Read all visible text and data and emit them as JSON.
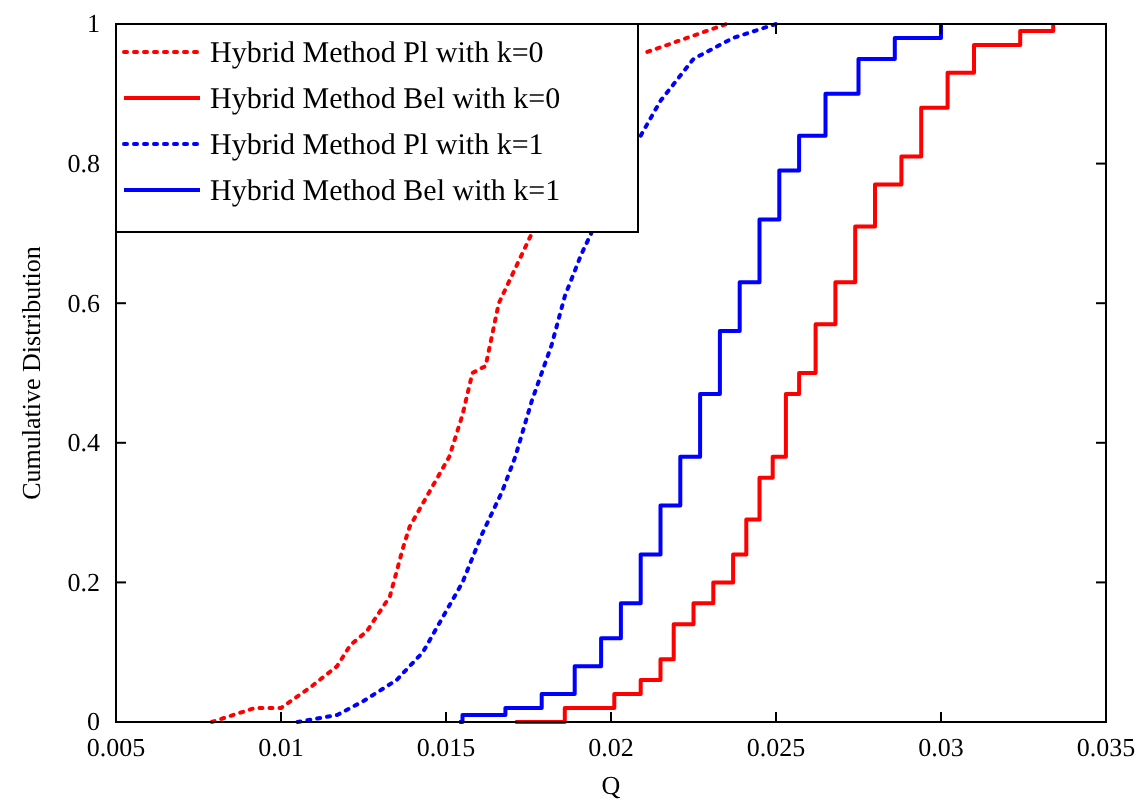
{
  "chart_data": {
    "type": "line",
    "xlabel": "Q",
    "ylabel": "Cumulative Distribution",
    "xlim": [
      0.005,
      0.035
    ],
    "xticks": [
      0.005,
      0.01,
      0.015,
      0.02,
      0.025,
      0.03,
      0.035
    ],
    "ylim": [
      0,
      1
    ],
    "yticks": [
      0,
      0.2,
      0.4,
      0.6,
      0.8,
      1
    ],
    "grid": false,
    "legend": "top left",
    "series": [
      {
        "name": "Hybrid Method Pl with k=0",
        "color": "#ff0000",
        "line_style": "dotted",
        "x": [
          0.0079,
          0.0092,
          0.01,
          0.0109,
          0.0117,
          0.0121,
          0.0126,
          0.0133,
          0.0137,
          0.0139,
          0.0145,
          0.0151,
          0.0155,
          0.0158,
          0.0162,
          0.0166,
          0.0171,
          0.0176,
          0.019,
          0.0211,
          0.0223,
          0.0235
        ],
        "values": [
          0,
          0.02,
          0.02,
          0.05,
          0.08,
          0.11,
          0.13,
          0.18,
          0.25,
          0.28,
          0.33,
          0.38,
          0.44,
          0.5,
          0.51,
          0.6,
          0.65,
          0.7,
          null,
          0.96,
          0.98,
          1
        ]
      },
      {
        "name": "Hybrid Method Bel with k=0",
        "color": "#ff0000",
        "type": "step",
        "line_style": "solid",
        "x": [
          0.0171,
          0.0186,
          0.0201,
          0.0209,
          0.0215,
          0.0219,
          0.0225,
          0.0231,
          0.0237,
          0.0241,
          0.0245,
          0.0249,
          0.0253,
          0.0257,
          0.0262,
          0.0268,
          0.0274,
          0.028,
          0.0288,
          0.0294,
          0.0302,
          0.031,
          0.0324,
          0.0334
        ],
        "values": [
          0,
          0.02,
          0.04,
          0.06,
          0.09,
          0.14,
          0.17,
          0.2,
          0.24,
          0.29,
          0.35,
          0.38,
          0.47,
          0.5,
          0.57,
          0.63,
          0.71,
          0.77,
          0.81,
          0.88,
          0.93,
          0.97,
          0.99,
          1
        ]
      },
      {
        "name": "Hybrid Method Pl with k=1",
        "color": "#0000ff",
        "line_style": "dotted",
        "x": [
          0.0105,
          0.0117,
          0.0125,
          0.0135,
          0.0143,
          0.0149,
          0.0155,
          0.0161,
          0.0167,
          0.0171,
          0.0176,
          0.0182,
          0.0186,
          0.0191,
          0.0194,
          0.02,
          0.0209,
          0.0215,
          0.0225,
          0.0237,
          0.025
        ],
        "values": [
          0,
          0.01,
          0.03,
          0.06,
          0.1,
          0.15,
          0.2,
          0.27,
          0.33,
          0.38,
          0.46,
          0.54,
          0.61,
          0.67,
          0.7,
          null,
          0.84,
          0.89,
          0.95,
          0.98,
          1
        ]
      },
      {
        "name": "Hybrid Method Bel with k=1",
        "color": "#0000ff",
        "type": "step",
        "line_style": "solid",
        "x": [
          0.0154,
          0.0155,
          0.0168,
          0.0179,
          0.0189,
          0.0197,
          0.0203,
          0.0209,
          0.0215,
          0.0221,
          0.0227,
          0.0233,
          0.0239,
          0.0245,
          0.0251,
          0.0257,
          0.0265,
          0.0275,
          0.0286,
          0.03
        ],
        "values": [
          0,
          0.01,
          0.02,
          0.04,
          0.08,
          0.12,
          0.17,
          0.24,
          0.31,
          0.38,
          0.47,
          0.56,
          0.63,
          0.72,
          0.79,
          0.84,
          0.9,
          0.95,
          0.98,
          1
        ]
      }
    ]
  }
}
